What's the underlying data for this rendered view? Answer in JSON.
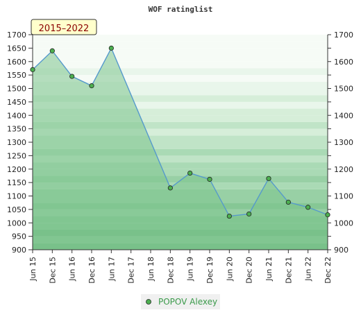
{
  "chart_data": {
    "type": "area",
    "title": "WOF ratinglist",
    "period": "2015–2022",
    "ylim": [
      900,
      1700
    ],
    "yticks": [
      900,
      950,
      1000,
      1050,
      1100,
      1150,
      1200,
      1250,
      1300,
      1350,
      1400,
      1450,
      1500,
      1550,
      1600,
      1650,
      1700
    ],
    "yticks_right": [
      900,
      1000,
      1100,
      1200,
      1300,
      1400,
      1500,
      1600,
      1700
    ],
    "categories": [
      "Jun 15",
      "Dec 15",
      "Jun 16",
      "Dec 16",
      "Jun 17",
      "Dec 17",
      "Jun 18",
      "Dec 18",
      "Jun 19",
      "Dec 19",
      "Jun 20",
      "Dec 20",
      "Jun 21",
      "Dec 21",
      "Jun 22",
      "Dec 22"
    ],
    "series": [
      {
        "name": "POPOV Alexey",
        "values": [
          1570,
          1640,
          1545,
          1510,
          1650,
          null,
          null,
          1130,
          1185,
          1162,
          1025,
          1033,
          1165,
          1077,
          1058,
          1030
        ]
      }
    ],
    "grid": true,
    "legend": "bottom-center",
    "colors": {
      "line": "#5599cc",
      "area": "#7ec48e",
      "marker": "#4caf50",
      "badge_bg": "#ffffcc",
      "legend_text": "#3a9a4a"
    }
  }
}
